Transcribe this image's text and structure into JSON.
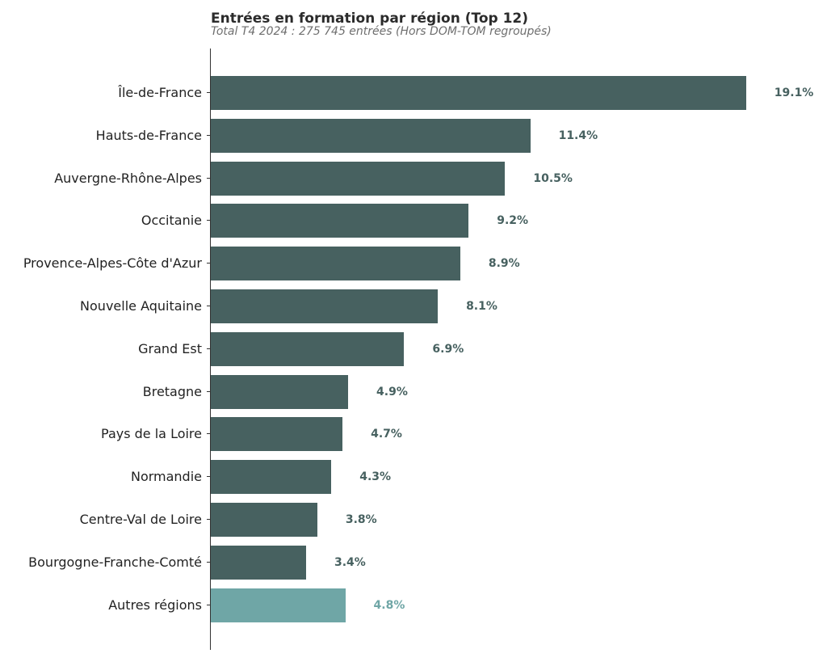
{
  "chart_data": {
    "type": "bar",
    "orientation": "horizontal",
    "title": "Entrées en formation par région (Top 12)",
    "subtitle": "Total T4 2024 : 275 745 entrées (Hors DOM-TOM regroupés)",
    "xlabel": "",
    "ylabel": "",
    "grid": false,
    "legend": null,
    "categories": [
      "Île-de-France",
      "Hauts-de-France",
      "Auvergne-Rhône-Alpes",
      "Occitanie",
      "Provence-Alpes-Côte d'Azur",
      "Nouvelle Aquitaine",
      "Grand Est",
      "Bretagne",
      "Pays de la Loire",
      "Normandie",
      "Centre-Val de Loire",
      "Bourgogne-Franche-Comté",
      "Autres régions"
    ],
    "values": [
      19.1,
      11.4,
      10.5,
      9.2,
      8.9,
      8.1,
      6.9,
      4.9,
      4.7,
      4.3,
      3.8,
      3.4,
      4.8
    ],
    "value_labels": [
      "19.1%",
      "11.4%",
      "10.5%",
      "9.2%",
      "8.9%",
      "8.1%",
      "6.9%",
      "4.9%",
      "4.7%",
      "4.3%",
      "3.8%",
      "3.4%",
      "4.8%"
    ],
    "unit": "%",
    "colors": {
      "primary": "#476160",
      "other": "#6fa6a6"
    }
  }
}
